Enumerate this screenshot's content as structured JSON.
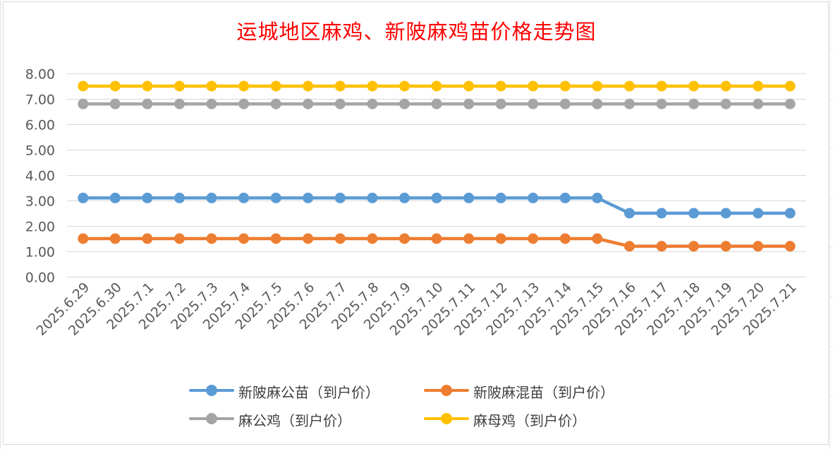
{
  "chart_data": {
    "type": "line",
    "title": "运城地区麻鸡、新陂麻鸡苗价格走势图",
    "xlabel": "",
    "ylabel": "",
    "ylim": [
      0,
      8
    ],
    "yticks": [
      "0.00",
      "1.00",
      "2.00",
      "3.00",
      "4.00",
      "5.00",
      "6.00",
      "7.00",
      "8.00"
    ],
    "grid": true,
    "legend_position": "bottom",
    "categories": [
      "2025.6.29",
      "2025.6.30",
      "2025.7.1",
      "2025.7.2",
      "2025.7.3",
      "2025.7.4",
      "2025.7.5",
      "2025.7.6",
      "2025.7.7",
      "2025.7.8",
      "2025.7.9",
      "2025.7.10",
      "2025.7.11",
      "2025.7.12",
      "2025.7.13",
      "2025.7.14",
      "2025.7.15",
      "2025.7.16",
      "2025.7.17",
      "2025.7.18",
      "2025.7.19",
      "2025.7.20",
      "2025.7.21"
    ],
    "series": [
      {
        "name": "新陂麻公苗（到户价）",
        "color": "#5b9bd5",
        "values": [
          3.1,
          3.1,
          3.1,
          3.1,
          3.1,
          3.1,
          3.1,
          3.1,
          3.1,
          3.1,
          3.1,
          3.1,
          3.1,
          3.1,
          3.1,
          3.1,
          3.1,
          2.5,
          2.5,
          2.5,
          2.5,
          2.5,
          2.5
        ]
      },
      {
        "name": "新陂麻混苗（到户价）",
        "color": "#ed7d31",
        "values": [
          1.5,
          1.5,
          1.5,
          1.5,
          1.5,
          1.5,
          1.5,
          1.5,
          1.5,
          1.5,
          1.5,
          1.5,
          1.5,
          1.5,
          1.5,
          1.5,
          1.5,
          1.2,
          1.2,
          1.2,
          1.2,
          1.2,
          1.2
        ]
      },
      {
        "name": "麻公鸡（到户价）",
        "color": "#a5a5a5",
        "values": [
          6.8,
          6.8,
          6.8,
          6.8,
          6.8,
          6.8,
          6.8,
          6.8,
          6.8,
          6.8,
          6.8,
          6.8,
          6.8,
          6.8,
          6.8,
          6.8,
          6.8,
          6.8,
          6.8,
          6.8,
          6.8,
          6.8,
          6.8
        ]
      },
      {
        "name": "麻母鸡（到户价）",
        "color": "#ffc000",
        "values": [
          7.5,
          7.5,
          7.5,
          7.5,
          7.5,
          7.5,
          7.5,
          7.5,
          7.5,
          7.5,
          7.5,
          7.5,
          7.5,
          7.5,
          7.5,
          7.5,
          7.5,
          7.5,
          7.5,
          7.5,
          7.5,
          7.5,
          7.5
        ]
      }
    ]
  }
}
